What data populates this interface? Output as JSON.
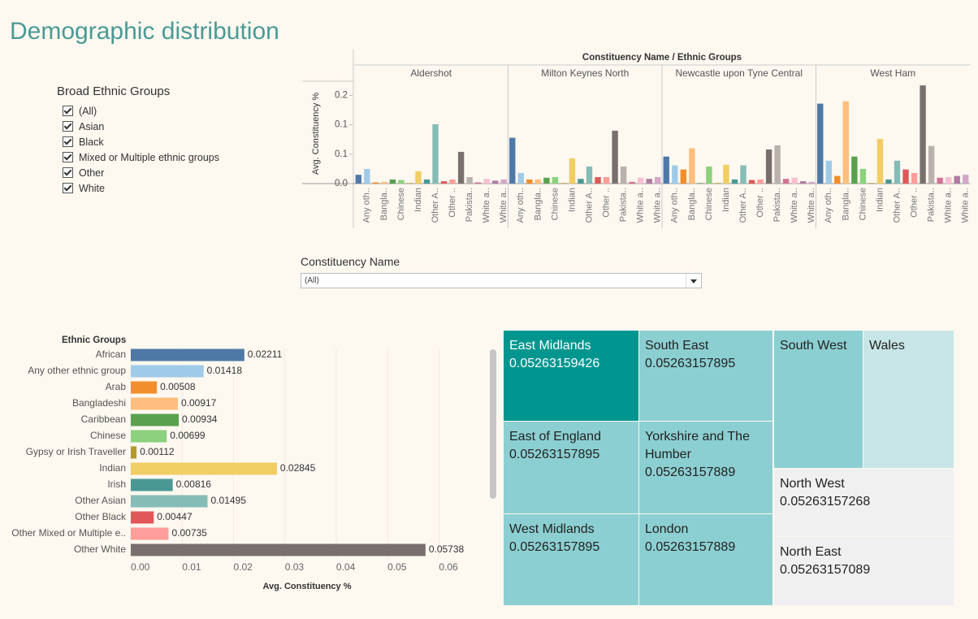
{
  "title": "Demographic distribution",
  "ethnic_filter": {
    "title": "Broad Ethnic Groups",
    "options": [
      "(All)",
      "Asian",
      "Black",
      "Mixed or Multiple ethnic groups",
      "Other",
      "White"
    ]
  },
  "constituency_filter": {
    "title": "Constituency Name",
    "value": "(All)"
  },
  "chart_data": [
    {
      "type": "bar",
      "orientation": "vertical",
      "title": "Constituency Name / Ethnic Groups",
      "y_label": "Avg. Constituency %",
      "categories": [
        null,
        "Any oth..",
        null,
        "Bangla..",
        null,
        "Chinese",
        null,
        "Indian",
        null,
        "Other A..",
        null,
        "Other ..",
        null,
        "Pakista..",
        null,
        "White a..",
        null,
        "White a.."
      ],
      "colors": [
        "#4e79a7",
        "#a0cbe8",
        "#f28e2b",
        "#ffbe7d",
        "#59a14f",
        "#8cd17d",
        "#b6992d",
        "#f1ce63",
        "#499894",
        "#86bcb6",
        "#e15759",
        "#ff9d9a",
        "#79706e",
        "#bab0ac",
        "#d37295",
        "#fabfd2",
        "#b07aa1",
        "#d4a6c8"
      ],
      "series": [
        {
          "name": "Aldershot",
          "values": [
            0.015,
            0.025,
            0.002,
            0.003,
            0.007,
            0.006,
            0.001,
            0.021,
            0.007,
            0.101,
            0.004,
            0.007,
            0.054,
            0.011,
            0.002,
            0.008,
            0.005,
            0.007
          ]
        },
        {
          "name": "Milton Keynes North",
          "values": [
            0.078,
            0.018,
            0.007,
            0.007,
            0.01,
            0.011,
            0.001,
            0.043,
            0.008,
            0.029,
            0.011,
            0.011,
            0.09,
            0.029,
            0.003,
            0.01,
            0.008,
            0.011
          ]
        },
        {
          "name": "Newcastle upon Tyne Central",
          "values": [
            0.046,
            0.031,
            0.024,
            0.06,
            0.001,
            0.029,
            0.001,
            0.032,
            0.007,
            0.031,
            0.006,
            0.007,
            0.058,
            0.065,
            0.008,
            0.01,
            0.004,
            0.003
          ]
        },
        {
          "name": "West Ham",
          "values": [
            0.136,
            0.039,
            0.013,
            0.14,
            0.046,
            0.025,
            0.001,
            0.076,
            0.007,
            0.039,
            0.024,
            0.018,
            0.167,
            0.064,
            0.01,
            0.011,
            0.013,
            0.015
          ]
        }
      ],
      "ylim": [
        0,
        0.17
      ],
      "yticks": [
        {
          "value": 0,
          "label": "0.0"
        },
        {
          "value": 0.05,
          "label": "0.1"
        },
        {
          "value": 0.1,
          "label": "0.1"
        },
        {
          "value": 0.15,
          "label": "0.2"
        }
      ]
    },
    {
      "type": "bar",
      "orientation": "horizontal",
      "title": "Ethnic Groups",
      "x_label": "Avg. Constituency %",
      "categories": [
        "African",
        "Any other ethnic group",
        "Arab",
        "Bangladeshi",
        "Caribbean",
        "Chinese",
        "Gypsy or Irish Traveller",
        "Indian",
        "Irish",
        "Other Asian",
        "Other Black",
        "Other Mixed or Multiple e..",
        "Other White"
      ],
      "values": [
        0.02211,
        0.01418,
        0.00508,
        0.00917,
        0.00934,
        0.00699,
        0.00112,
        0.02845,
        0.00816,
        0.01495,
        0.00447,
        0.00735,
        0.05738
      ],
      "colors": [
        "#4e79a7",
        "#a0cbe8",
        "#f28e2b",
        "#ffbe7d",
        "#59a14f",
        "#8cd17d",
        "#b6992d",
        "#f1ce63",
        "#499894",
        "#86bcb6",
        "#e15759",
        "#ff9d9a",
        "#79706e"
      ],
      "xlim": [
        0,
        0.065
      ],
      "xticks": [
        {
          "value": 0,
          "label": "0.00"
        },
        {
          "value": 0.01,
          "label": "0.01"
        },
        {
          "value": 0.02,
          "label": "0.02"
        },
        {
          "value": 0.03,
          "label": "0.03"
        },
        {
          "value": 0.04,
          "label": "0.04"
        },
        {
          "value": 0.05,
          "label": "0.05"
        },
        {
          "value": 0.06,
          "label": "0.06"
        }
      ]
    },
    {
      "type": "treemap",
      "tiles": [
        {
          "name": "East Midlands",
          "value": 0.05263159426,
          "color": "#00968f",
          "show_value": true
        },
        {
          "name": "South East",
          "value": 0.05263157895,
          "color": "#8ccfd2",
          "show_value": true
        },
        {
          "name": "East of England",
          "value": 0.05263157895,
          "color": "#8ccfd2",
          "show_value": true
        },
        {
          "name": "Yorkshire and The Humber",
          "value": 0.05263157889,
          "color": "#8ccfd2",
          "show_value": true
        },
        {
          "name": "West Midlands",
          "value": 0.05263157895,
          "color": "#8ccfd2",
          "show_value": true
        },
        {
          "name": "London",
          "value": 0.05263157889,
          "color": "#8ccfd2",
          "show_value": true
        },
        {
          "name": "South West",
          "value": 0.05263,
          "color": "#8ccfd2",
          "show_value": false
        },
        {
          "name": "Wales",
          "value": 0.05263,
          "color": "#c8e6e7",
          "show_value": false
        },
        {
          "name": "North West",
          "value": 0.05263157268,
          "color": "#f0f0f0",
          "show_value": true
        },
        {
          "name": "North East",
          "value": 0.05263157089,
          "color": "#f0f0f0",
          "show_value": true
        }
      ]
    }
  ]
}
